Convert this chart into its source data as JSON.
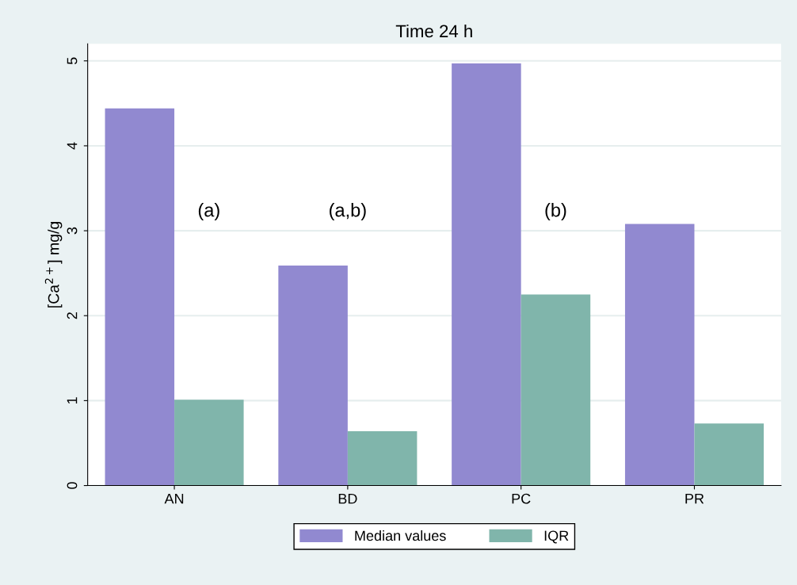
{
  "chart_data": {
    "type": "bar",
    "title": "Time 24 h",
    "ylabel": "[Ca$^{2+}$] mg/g",
    "categories": [
      "AN",
      "BD",
      "PC",
      "PR"
    ],
    "series": [
      {
        "name": "Median values",
        "color": "#9189d0",
        "values": [
          4.44,
          2.59,
          4.97,
          3.08
        ]
      },
      {
        "name": "IQR",
        "color": "#80b5ab",
        "values": [
          1.01,
          0.64,
          2.25,
          0.73
        ]
      }
    ],
    "ylim": [
      0,
      5.2
    ],
    "yticks": [
      0,
      1,
      2,
      3,
      4,
      5
    ],
    "grid": "y",
    "legend": "bottom",
    "annotations": [
      "(a)",
      "(a,b)",
      "(b)"
    ]
  }
}
